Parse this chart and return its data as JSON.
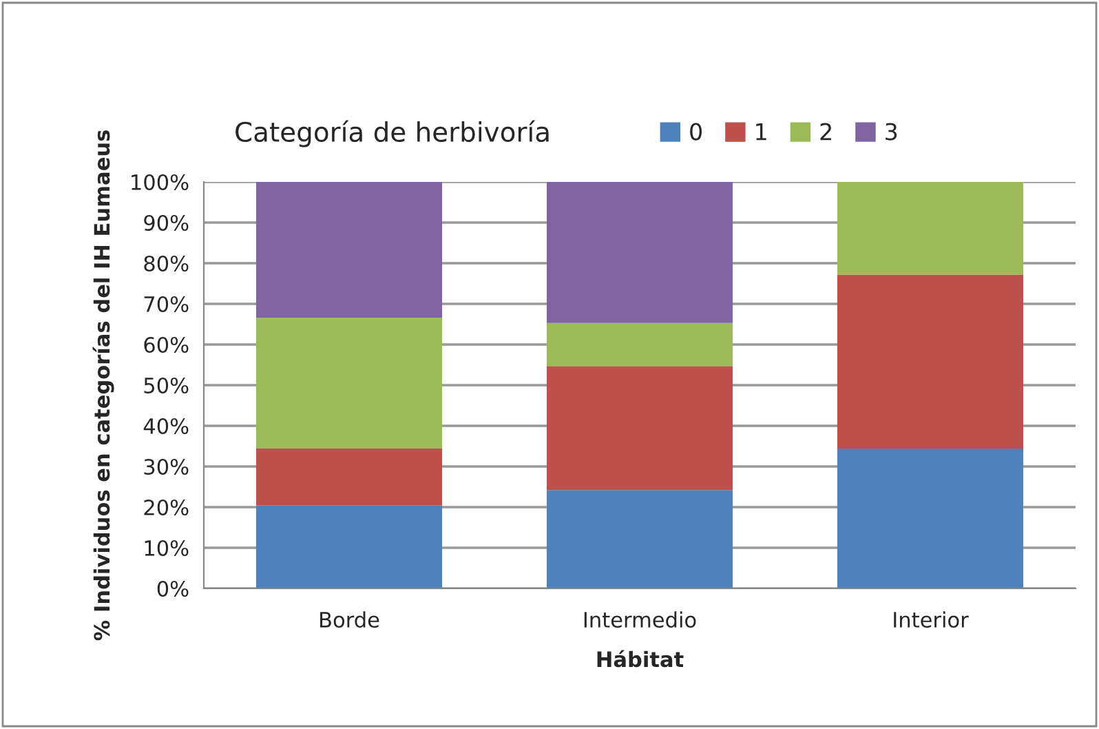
{
  "chart_data": {
    "type": "bar",
    "stacked": true,
    "legend_title": "Categoría de herbivoría",
    "xlabel": "Hábitat",
    "ylabel": "% Individuos en categorías del IH Eumaeus",
    "categories": [
      "Borde",
      "Intermedio",
      "Interior"
    ],
    "series": [
      {
        "name": "0",
        "color": "#4f81bd",
        "values": [
          20.4,
          24.2,
          34.4
        ]
      },
      {
        "name": "1",
        "color": "#c0504d",
        "values": [
          14.0,
          30.5,
          42.8
        ]
      },
      {
        "name": "2",
        "color": "#9bbb59",
        "values": [
          32.2,
          10.6,
          22.8
        ]
      },
      {
        "name": "3",
        "color": "#8064a2",
        "values": [
          33.4,
          34.7,
          null
        ]
      }
    ],
    "ylim": [
      0,
      100
    ],
    "yticks": [
      {
        "value": 0,
        "label": "0%"
      },
      {
        "value": 10,
        "label": "10%"
      },
      {
        "value": 20,
        "label": "20%"
      },
      {
        "value": 30,
        "label": "30%"
      },
      {
        "value": 40,
        "label": "40%"
      },
      {
        "value": 50,
        "label": "50%"
      },
      {
        "value": 60,
        "label": "60%"
      },
      {
        "value": 70,
        "label": "70%"
      },
      {
        "value": 80,
        "label": "80%"
      },
      {
        "value": 90,
        "label": "90%"
      },
      {
        "value": 100,
        "label": "100%"
      }
    ],
    "grid": "y",
    "legend": "top"
  }
}
